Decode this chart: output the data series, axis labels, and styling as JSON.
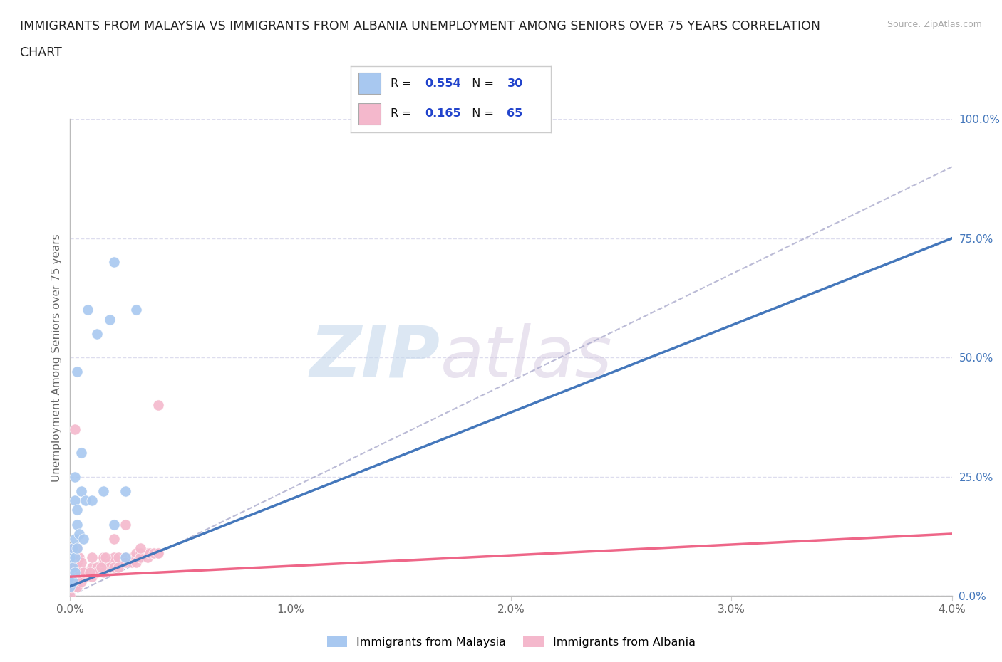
{
  "title_line1": "IMMIGRANTS FROM MALAYSIA VS IMMIGRANTS FROM ALBANIA UNEMPLOYMENT AMONG SENIORS OVER 75 YEARS CORRELATION",
  "title_line2": "CHART",
  "source": "Source: ZipAtlas.com",
  "ylabel": "Unemployment Among Seniors over 75 years",
  "xlim": [
    0.0,
    0.04
  ],
  "ylim": [
    0.0,
    1.0
  ],
  "xticks": [
    0.0,
    0.01,
    0.02,
    0.03,
    0.04
  ],
  "xtick_labels": [
    "0.0%",
    "1.0%",
    "2.0%",
    "3.0%",
    "4.0%"
  ],
  "yticks_right": [
    0.0,
    0.25,
    0.5,
    0.75,
    1.0
  ],
  "ytick_labels_right": [
    "0.0%",
    "25.0%",
    "50.0%",
    "75.0%",
    "100.0%"
  ],
  "malaysia_color": "#a8c8f0",
  "albania_color": "#f4b8cc",
  "malaysia_line_color": "#4477bb",
  "albania_line_color": "#ee6688",
  "trend_dashed_color": "#aaaacc",
  "watermark_color": "#d0e4f5",
  "malaysia_R": 0.554,
  "malaysia_N": 30,
  "albania_R": 0.165,
  "albania_N": 65,
  "malaysia_scatter_x": [
    0.0,
    0.0,
    0.0,
    0.0001,
    0.0001,
    0.0001,
    0.0002,
    0.0002,
    0.0002,
    0.0002,
    0.0002,
    0.0003,
    0.0003,
    0.0003,
    0.0003,
    0.0004,
    0.0005,
    0.0005,
    0.0006,
    0.0007,
    0.0008,
    0.001,
    0.0012,
    0.0015,
    0.0018,
    0.002,
    0.0025,
    0.003,
    0.0025,
    0.002
  ],
  "malaysia_scatter_y": [
    0.02,
    0.04,
    0.08,
    0.03,
    0.06,
    0.1,
    0.05,
    0.08,
    0.12,
    0.2,
    0.25,
    0.1,
    0.15,
    0.18,
    0.47,
    0.13,
    0.22,
    0.3,
    0.12,
    0.2,
    0.6,
    0.2,
    0.55,
    0.22,
    0.58,
    0.7,
    0.22,
    0.6,
    0.08,
    0.15
  ],
  "albania_scatter_x": [
    0.0,
    0.0,
    0.0001,
    0.0001,
    0.0001,
    0.0002,
    0.0002,
    0.0002,
    0.0003,
    0.0003,
    0.0003,
    0.0004,
    0.0004,
    0.0005,
    0.0005,
    0.0006,
    0.0007,
    0.0008,
    0.001,
    0.001,
    0.0012,
    0.0015,
    0.0015,
    0.0018,
    0.002,
    0.002,
    0.0022,
    0.0025,
    0.0028,
    0.003,
    0.003,
    0.0032,
    0.0035,
    0.0035,
    0.0038,
    0.004,
    0.0,
    0.0001,
    0.0002,
    0.0003,
    0.0005,
    0.0008,
    0.001,
    0.0012,
    0.0015,
    0.0018,
    0.002,
    0.0022,
    0.0025,
    0.0028,
    0.003,
    0.0032,
    0.0035,
    0.0036,
    0.0038,
    0.004,
    0.0004,
    0.0006,
    0.0009,
    0.0014,
    0.0016,
    0.004,
    0.0032,
    0.0025,
    0.002
  ],
  "albania_scatter_y": [
    0.0,
    0.05,
    0.02,
    0.06,
    0.1,
    0.03,
    0.06,
    0.35,
    0.04,
    0.07,
    0.1,
    0.04,
    0.08,
    0.04,
    0.07,
    0.05,
    0.05,
    0.05,
    0.06,
    0.08,
    0.06,
    0.07,
    0.08,
    0.07,
    0.07,
    0.08,
    0.08,
    0.08,
    0.08,
    0.08,
    0.09,
    0.09,
    0.09,
    0.09,
    0.09,
    0.09,
    0.02,
    0.03,
    0.02,
    0.02,
    0.03,
    0.04,
    0.04,
    0.05,
    0.05,
    0.06,
    0.06,
    0.06,
    0.07,
    0.07,
    0.07,
    0.08,
    0.08,
    0.09,
    0.09,
    0.09,
    0.05,
    0.05,
    0.05,
    0.06,
    0.08,
    0.4,
    0.1,
    0.15,
    0.12
  ],
  "background_color": "#ffffff",
  "grid_color": "#ddddee",
  "title_color": "#222222",
  "label_color": "#666666",
  "right_label_color": "#4477bb",
  "legend_text_color": "#111111",
  "legend_value_color": "#2244cc"
}
